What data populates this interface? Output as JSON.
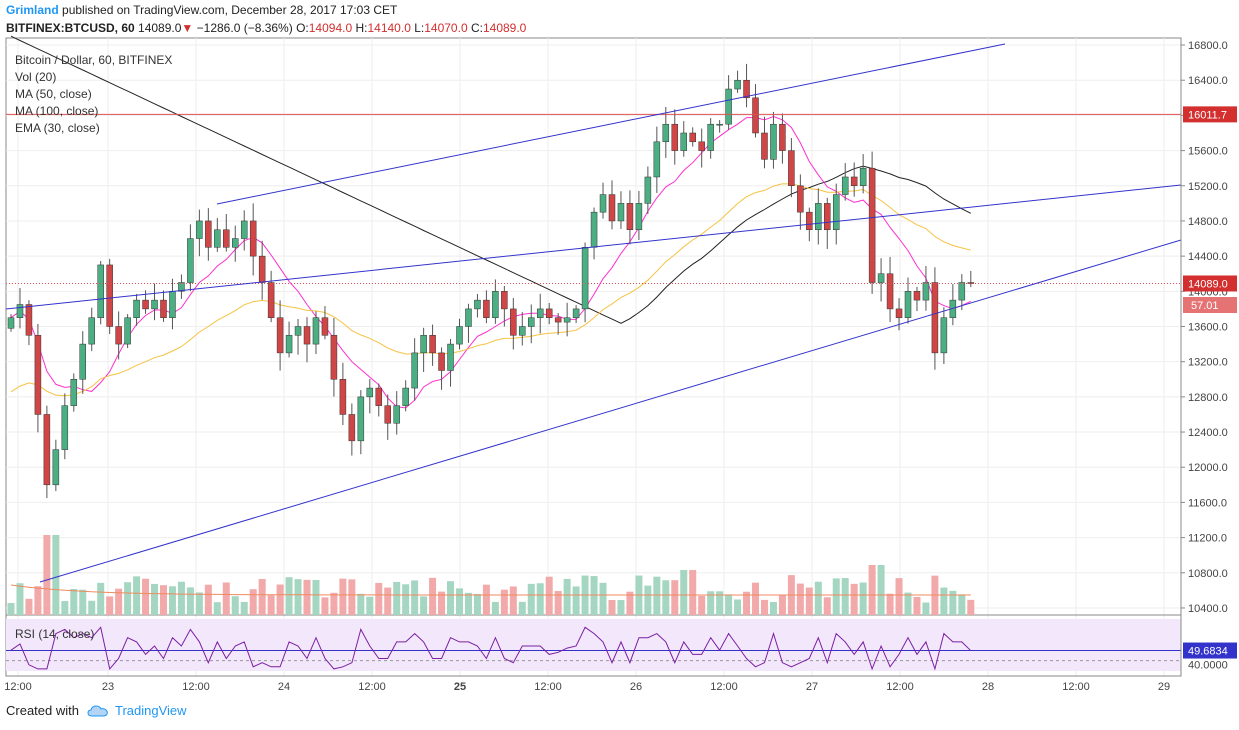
{
  "header": {
    "author": "Grimland",
    "published": "published on TradingView.com, December 28, 2017 17:03 CET",
    "symbol": "BITFINEX:BTCUSD, 60",
    "last": "14089.0",
    "arrow": "▼",
    "change": "−1286.0 (−8.36%)",
    "o_label": "O:",
    "o_val": "14094.0",
    "h_label": "H:",
    "h_val": "14140.0",
    "l_label": "L:",
    "l_val": "14070.0",
    "c_label": "C:",
    "c_val": "14089.0"
  },
  "legend": {
    "title": "Bitcoin / Dollar, 60, BITFINEX",
    "vol": "Vol (20)",
    "ma50": "MA (50, close)",
    "ma100": "MA (100, close)",
    "ema30": "EMA (30, close)"
  },
  "rsi_label": "RSI (14, close)",
  "footer": {
    "created": "Created with",
    "brand": "TradingView"
  },
  "colors": {
    "up": "#4caf83",
    "down": "#d04545",
    "ma50": "#ff2fd0",
    "ma100": "#222222",
    "ema30": "#f5c242",
    "trend": "#3333cc",
    "hline": "#e05050"
  },
  "chart_data": {
    "type": "candlestick",
    "y_ticks": [
      10400,
      10800,
      11200,
      11600,
      12000,
      12400,
      12800,
      13200,
      13600,
      14000,
      14400,
      14800,
      15200,
      15600,
      16000,
      16400,
      16800
    ],
    "y_tick_labels": [
      "10400.0",
      "10800.0",
      "11200.0",
      "11600.0",
      "12000.0",
      "12400.0",
      "12800.0",
      "13200.0",
      "13600.0",
      "14000.0",
      "14400.0",
      "14800.0",
      "15200.0",
      "15600.0",
      "16000.0",
      "16400.0",
      "16800.0"
    ],
    "ylim": [
      10320,
      16880
    ],
    "x_ticks": [
      "12:00",
      "23",
      "12:00",
      "24",
      "12:00",
      "25",
      "12:00",
      "26",
      "12:00",
      "27",
      "12:00",
      "28",
      "12:00",
      "29"
    ],
    "price_marks": [
      {
        "label": "16011.7",
        "value": 16011.7
      },
      {
        "label": "14089.0",
        "value": 14089.0
      }
    ],
    "volume_mark": "57.01",
    "rsi": {
      "value_label": "49.6834",
      "level_label": "40.0000",
      "level": 40,
      "value": 49.6834
    },
    "anchors": [
      [
        0,
        13700
      ],
      [
        1,
        13850
      ],
      [
        2,
        13500
      ],
      [
        3,
        12600
      ],
      [
        4,
        11800
      ],
      [
        5,
        12200
      ],
      [
        6,
        12700
      ],
      [
        7,
        13000
      ],
      [
        8,
        13400
      ],
      [
        9,
        13700
      ],
      [
        10,
        14300
      ],
      [
        11,
        13600
      ],
      [
        12,
        13400
      ],
      [
        13,
        13700
      ],
      [
        14,
        13900
      ],
      [
        15,
        13800
      ],
      [
        16,
        13900
      ],
      [
        17,
        13700
      ],
      [
        18,
        14000
      ],
      [
        19,
        14100
      ],
      [
        20,
        14600
      ],
      [
        21,
        14800
      ],
      [
        22,
        14500
      ],
      [
        23,
        14700
      ],
      [
        24,
        14500
      ],
      [
        25,
        14600
      ],
      [
        26,
        14800
      ],
      [
        27,
        14400
      ],
      [
        28,
        14100
      ],
      [
        29,
        13700
      ],
      [
        30,
        13300
      ],
      [
        31,
        13500
      ],
      [
        32,
        13600
      ],
      [
        33,
        13400
      ],
      [
        34,
        13700
      ],
      [
        35,
        13500
      ],
      [
        36,
        13000
      ],
      [
        37,
        12600
      ],
      [
        38,
        12300
      ],
      [
        39,
        12800
      ],
      [
        40,
        12900
      ],
      [
        41,
        12700
      ],
      [
        42,
        12500
      ],
      [
        43,
        12700
      ],
      [
        44,
        12900
      ],
      [
        45,
        13300
      ],
      [
        46,
        13500
      ],
      [
        47,
        13300
      ],
      [
        48,
        13100
      ],
      [
        49,
        13400
      ],
      [
        50,
        13600
      ],
      [
        51,
        13800
      ],
      [
        52,
        13900
      ],
      [
        53,
        13700
      ],
      [
        54,
        14000
      ],
      [
        55,
        13800
      ],
      [
        56,
        13500
      ],
      [
        57,
        13600
      ],
      [
        58,
        13700
      ],
      [
        59,
        13800
      ],
      [
        60,
        13700
      ],
      [
        61,
        13650
      ],
      [
        62,
        13700
      ],
      [
        63,
        13800
      ],
      [
        64,
        14500
      ],
      [
        65,
        14900
      ],
      [
        66,
        15100
      ],
      [
        67,
        14800
      ],
      [
        68,
        15000
      ],
      [
        69,
        14700
      ],
      [
        70,
        15000
      ],
      [
        71,
        15300
      ],
      [
        72,
        15700
      ],
      [
        73,
        15900
      ],
      [
        74,
        15600
      ],
      [
        75,
        15800
      ],
      [
        76,
        15700
      ],
      [
        77,
        15600
      ],
      [
        78,
        15900
      ],
      [
        79,
        15900
      ],
      [
        80,
        16300
      ],
      [
        81,
        16400
      ],
      [
        82,
        16200
      ],
      [
        83,
        15800
      ],
      [
        84,
        15500
      ],
      [
        85,
        15900
      ],
      [
        86,
        15600
      ],
      [
        87,
        15200
      ],
      [
        88,
        14900
      ],
      [
        89,
        14700
      ],
      [
        90,
        15000
      ],
      [
        91,
        14700
      ],
      [
        92,
        15100
      ],
      [
        93,
        15300
      ],
      [
        94,
        15200
      ],
      [
        95,
        15400
      ],
      [
        96,
        14100
      ],
      [
        97,
        14200
      ],
      [
        98,
        13800
      ],
      [
        99,
        13700
      ],
      [
        100,
        14000
      ],
      [
        101,
        13900
      ],
      [
        102,
        14100
      ],
      [
        103,
        13300
      ],
      [
        104,
        13700
      ],
      [
        105,
        13900
      ],
      [
        106,
        14100
      ],
      [
        107,
        14089
      ]
    ]
  }
}
